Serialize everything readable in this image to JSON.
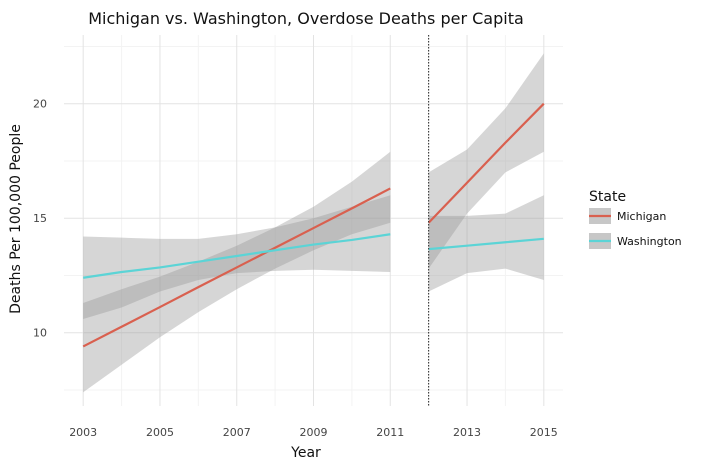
{
  "chart_data": {
    "type": "line",
    "title": "Michigan vs. Washington, Overdose Deaths per Capita",
    "xlabel": "Year",
    "ylabel": "Deaths Per 100,000 People",
    "xlim": [
      2002.5,
      2015.5
    ],
    "ylim": [
      6.8,
      23.0
    ],
    "x_ticks": [
      2003,
      2005,
      2007,
      2009,
      2011,
      2013,
      2015
    ],
    "x_tick_labels": [
      "2003",
      "2005",
      "2007",
      "2009",
      "2011",
      "2013",
      "2015"
    ],
    "y_ticks": [
      10,
      15,
      20
    ],
    "y_tick_labels": [
      "10",
      "15",
      "20"
    ],
    "grid": true,
    "legend_position": "right",
    "legend_title": "State",
    "policy_line_x": 2012,
    "series": [
      {
        "name": "Michigan",
        "color": "#d9604f",
        "segments": [
          {
            "x": [
              2003,
              2004,
              2005,
              2006,
              2007,
              2008,
              2009,
              2010,
              2011
            ],
            "fit": [
              9.4,
              10.26,
              11.12,
              11.99,
              12.85,
              13.71,
              14.57,
              15.43,
              16.3
            ],
            "lower": [
              7.4,
              8.6,
              9.8,
              10.9,
              11.9,
              12.8,
              13.6,
              14.3,
              14.8
            ],
            "upper": [
              11.3,
              11.9,
              12.45,
              13.1,
              13.8,
              14.6,
              15.5,
              16.6,
              17.9
            ]
          },
          {
            "x": [
              2012,
              2013,
              2014,
              2015
            ],
            "fit": [
              14.8,
              16.55,
              18.3,
              20.0
            ],
            "lower": [
              12.8,
              15.2,
              17.0,
              17.9
            ],
            "upper": [
              17.0,
              18.0,
              19.8,
              22.2
            ]
          }
        ]
      },
      {
        "name": "Washington",
        "color": "#5bd4d6",
        "segments": [
          {
            "x": [
              2003,
              2004,
              2005,
              2006,
              2007,
              2008,
              2009,
              2010,
              2011
            ],
            "fit": [
              12.4,
              12.65,
              12.85,
              13.1,
              13.35,
              13.6,
              13.85,
              14.05,
              14.3
            ],
            "lower": [
              10.6,
              11.1,
              11.8,
              12.3,
              12.6,
              12.7,
              12.75,
              12.7,
              12.65
            ],
            "upper": [
              14.2,
              14.15,
              14.1,
              14.1,
              14.3,
              14.6,
              15.0,
              15.5,
              16.0
            ]
          },
          {
            "x": [
              2012,
              2013,
              2014,
              2015
            ],
            "fit": [
              13.65,
              13.8,
              13.95,
              14.1
            ],
            "lower": [
              11.8,
              12.6,
              12.8,
              12.3
            ],
            "upper": [
              15.1,
              15.1,
              15.2,
              16.0
            ]
          }
        ]
      }
    ]
  }
}
